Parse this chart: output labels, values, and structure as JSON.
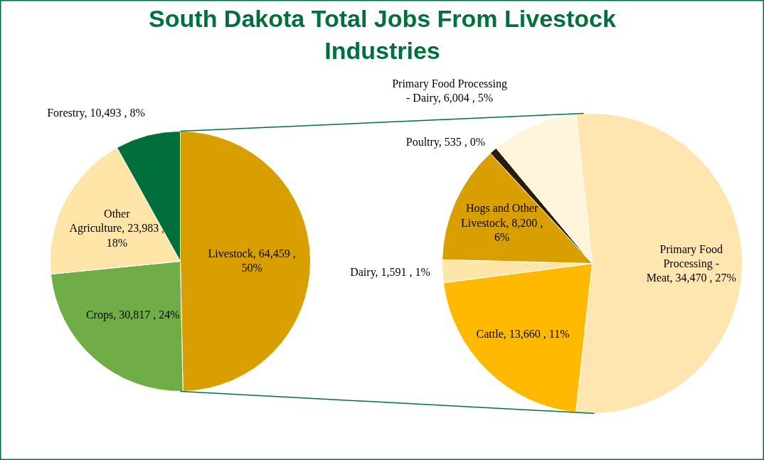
{
  "chart_data": [
    {
      "type": "pie",
      "title": "South Dakota Total Jobs From Livestock Industries",
      "categories": [
        "Livestock",
        "Crops",
        "Other Agriculture",
        "Forestry"
      ],
      "values": [
        64459,
        30817,
        23983,
        10493
      ],
      "value_labels": [
        "64,459 , 50%",
        "30,817 , 24%",
        "23,983 , 18%",
        "10,493 , 8%"
      ],
      "colors": [
        "#d99f00",
        "#70ad47",
        "#ffe5a8",
        "#006f3c"
      ],
      "legend": false
    },
    {
      "type": "pie",
      "categories": [
        "Primary Food Processing - Meat",
        "Cattle",
        "Dairy",
        "Hogs and Other Livestock",
        "Poultry",
        "Primary Food Processing - Dairy"
      ],
      "values": [
        34470,
        13660,
        1591,
        8200,
        535,
        6004
      ],
      "value_labels": [
        "34,470 , 27%",
        "13,660 , 11%",
        "1,591 , 1%",
        "8,200 , 6%",
        "535 , 0%",
        "6,004 , 5%"
      ],
      "colors": [
        "#ffe6b0",
        "#ffb900",
        "#ffe5a8",
        "#d99f00",
        "#2b1d05",
        "#fff5dc"
      ],
      "legend": false
    }
  ]
}
